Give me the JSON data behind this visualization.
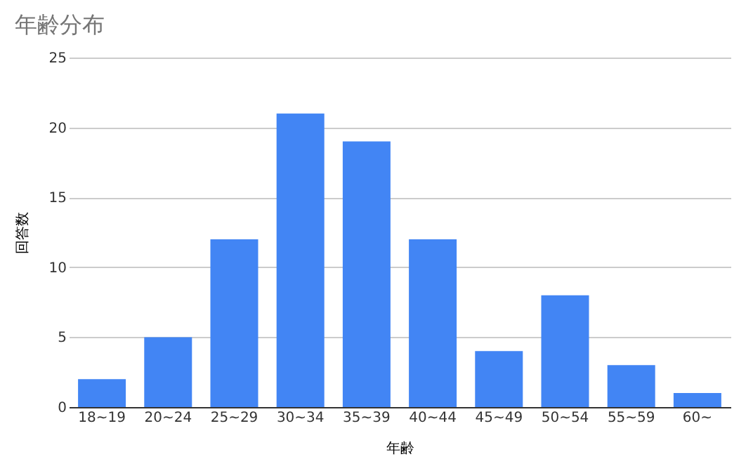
{
  "chart_data": {
    "type": "bar",
    "title": "年齢分布",
    "xlabel": "年齢",
    "ylabel": "回答数",
    "categories": [
      "18~19",
      "20~24",
      "25~29",
      "30~34",
      "35~39",
      "40~44",
      "45~49",
      "50~54",
      "55~59",
      "60~"
    ],
    "series": [
      {
        "color": "#4285f4",
        "values": [
          2,
          5,
          12,
          21,
          19,
          12,
          4,
          8,
          3,
          1
        ]
      }
    ],
    "ylim": [
      0,
      25
    ],
    "yticks": [
      0,
      5,
      10,
      15,
      20,
      25
    ],
    "grid": "y"
  }
}
